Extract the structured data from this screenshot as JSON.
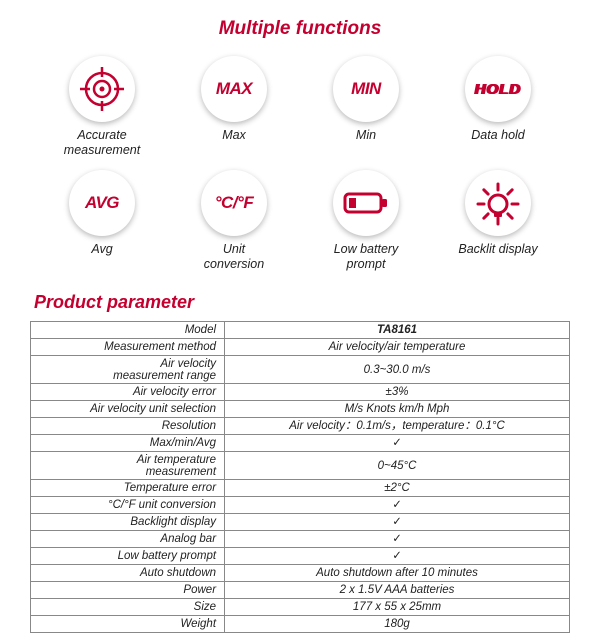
{
  "colors": {
    "accent": "#c3002f",
    "text": "#222222",
    "border": "#888888",
    "bg": "#ffffff"
  },
  "functions": {
    "title": "Multiple functions",
    "items": [
      {
        "icon": "crosshair",
        "label": "Accurate\nmeasurement"
      },
      {
        "icon": "text",
        "text": "MAX",
        "label": "Max"
      },
      {
        "icon": "text",
        "text": "MIN",
        "label": "Min"
      },
      {
        "icon": "text",
        "text": "HOLD",
        "style": "hold",
        "label": "Data hold"
      },
      {
        "icon": "text",
        "text": "AVG",
        "label": "Avg"
      },
      {
        "icon": "text",
        "text": "°C/°F",
        "label": "Unit\nconversion"
      },
      {
        "icon": "battery",
        "label": "Low battery\nprompt"
      },
      {
        "icon": "bulb",
        "label": "Backlit display"
      }
    ]
  },
  "parameters": {
    "title": "Product parameter",
    "rows": [
      {
        "k": "Model",
        "v": "TA8161"
      },
      {
        "k": "Measurement method",
        "v": "Air velocity/air temperature"
      },
      {
        "k": "Air velocity\nmeasurement range",
        "v": "0.3~30.0 m/s"
      },
      {
        "k": "Air velocity error",
        "v": "±3%"
      },
      {
        "k": "Air velocity unit selection",
        "v": "M/s  Knots  km/h  Mph"
      },
      {
        "k": "Resolution",
        "v": "Air velocity：0.1m/s，temperature：0.1°C"
      },
      {
        "k": "Max/min/Avg",
        "v": "✓"
      },
      {
        "k": "Air temperature\nmeasurement",
        "v": "0~45°C"
      },
      {
        "k": "Temperature error",
        "v": "±2°C"
      },
      {
        "k": "°C/°F unit conversion",
        "v": "✓"
      },
      {
        "k": "Backlight display",
        "v": "✓"
      },
      {
        "k": "Analog bar",
        "v": "✓"
      },
      {
        "k": "Low battery prompt",
        "v": "✓"
      },
      {
        "k": "Auto shutdown",
        "v": "Auto shutdown after 10 minutes"
      },
      {
        "k": "Power",
        "v": "2 x 1.5V AAA batteries"
      },
      {
        "k": "Size",
        "v": "177 x 55 x 25mm"
      },
      {
        "k": "Weight",
        "v": "180g"
      }
    ]
  }
}
